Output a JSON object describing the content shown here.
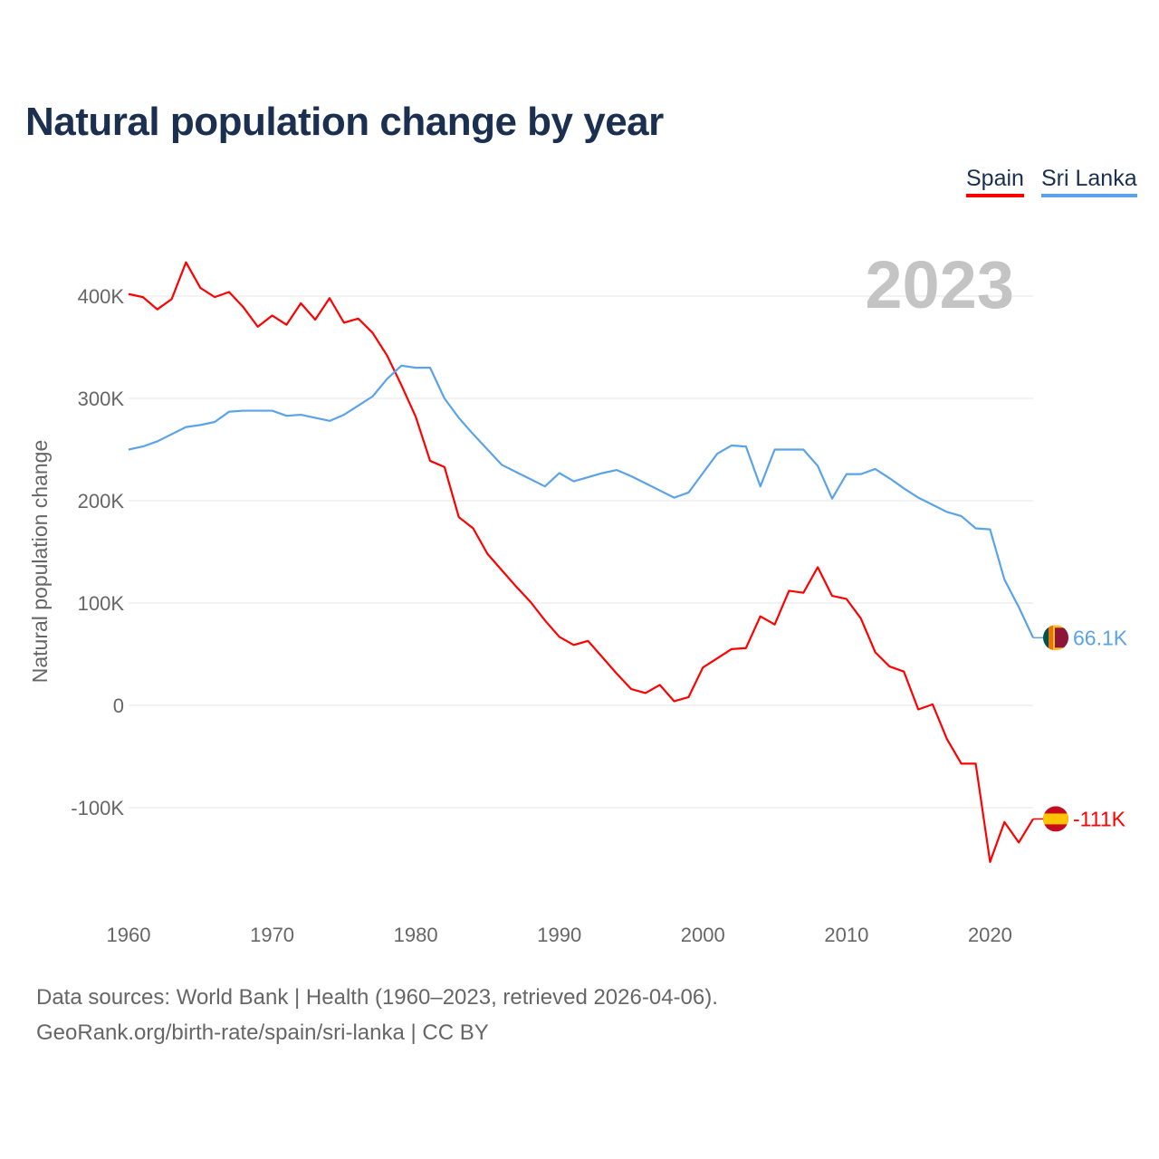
{
  "chart_data": {
    "type": "line",
    "title": "Natural population change by year",
    "xlabel": "",
    "ylabel": "Natural population change",
    "year_watermark": "2023",
    "x": [
      1960,
      1961,
      1962,
      1963,
      1964,
      1965,
      1966,
      1967,
      1968,
      1969,
      1970,
      1971,
      1972,
      1973,
      1974,
      1975,
      1976,
      1977,
      1978,
      1979,
      1980,
      1981,
      1982,
      1983,
      1984,
      1985,
      1986,
      1987,
      1988,
      1989,
      1990,
      1991,
      1992,
      1993,
      1994,
      1995,
      1996,
      1997,
      1998,
      1999,
      2000,
      2001,
      2002,
      2003,
      2004,
      2005,
      2006,
      2007,
      2008,
      2009,
      2010,
      2011,
      2012,
      2013,
      2014,
      2015,
      2016,
      2017,
      2018,
      2019,
      2020,
      2021,
      2022,
      2023
    ],
    "xlim": [
      1960,
      2023
    ],
    "ylim": [
      -200000,
      440000
    ],
    "x_ticks": [
      1960,
      1970,
      1980,
      1990,
      2000,
      2010,
      2020
    ],
    "y_ticks": [
      {
        "v": -100000,
        "label": "-100K"
      },
      {
        "v": 0,
        "label": "0"
      },
      {
        "v": 100000,
        "label": "100K"
      },
      {
        "v": 200000,
        "label": "200K"
      },
      {
        "v": 300000,
        "label": "300K"
      },
      {
        "v": 400000,
        "label": "400K"
      }
    ],
    "grid": true,
    "legend_position": "top-right",
    "series": [
      {
        "name": "Spain",
        "color": "#ff0000",
        "end_label": "-111K",
        "values": [
          402000,
          399000,
          387000,
          397000,
          433000,
          408000,
          399000,
          404000,
          389000,
          370000,
          381000,
          372000,
          393000,
          377000,
          398000,
          374000,
          378000,
          364000,
          342000,
          313000,
          282000,
          239000,
          233000,
          184000,
          173000,
          148000,
          132000,
          116000,
          101000,
          83000,
          67000,
          59000,
          63000,
          47000,
          31000,
          16000,
          12000,
          20000,
          4000,
          8000,
          37000,
          46000,
          55000,
          56000,
          87000,
          79000,
          112000,
          110000,
          135000,
          107000,
          104000,
          85000,
          52000,
          38000,
          33000,
          -4000,
          1000,
          -33000,
          -57000,
          -57000,
          -153000,
          -114000,
          -134000,
          -111000
        ]
      },
      {
        "name": "Sri Lanka",
        "color": "#5ba3e8",
        "end_label": "66.1K",
        "values": [
          250000,
          253000,
          258000,
          265000,
          272000,
          274000,
          277000,
          287000,
          288000,
          288000,
          288000,
          283000,
          284000,
          281000,
          278000,
          284000,
          293000,
          302000,
          319000,
          332000,
          330000,
          330000,
          300000,
          281000,
          265000,
          250000,
          235000,
          228000,
          221000,
          214000,
          227000,
          219000,
          223000,
          227000,
          230000,
          224000,
          217000,
          210000,
          203000,
          208000,
          227000,
          246000,
          254000,
          253000,
          214000,
          250000,
          250000,
          250000,
          234000,
          202000,
          226000,
          226000,
          231000,
          222000,
          212000,
          203000,
          196000,
          189000,
          185000,
          173000,
          172000,
          123000,
          96000,
          66100
        ]
      }
    ]
  },
  "footer": {
    "line1": "Data sources: World Bank | Health (1960–2023, retrieved 2026-04-06).",
    "line2": "GeoRank.org/birth-rate/spain/sri-lanka | CC BY"
  }
}
